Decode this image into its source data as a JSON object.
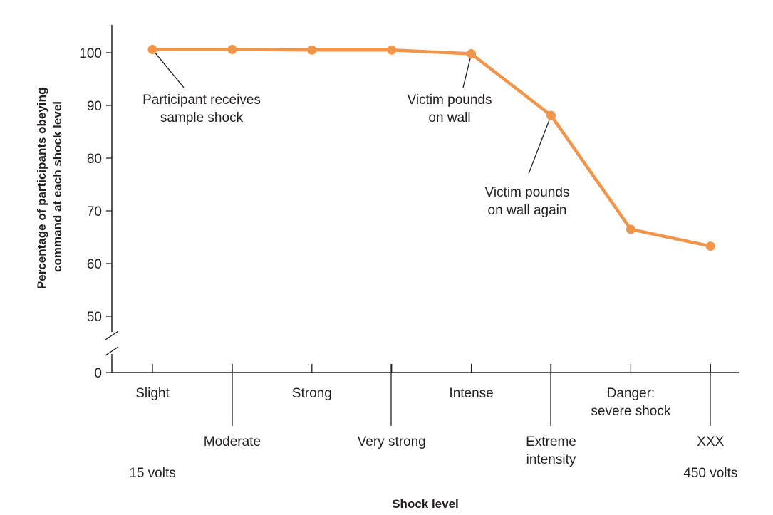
{
  "chart_data": {
    "type": "line",
    "xlabel": "Shock level",
    "ylabel_lines": [
      "Percentage of participants obeying",
      "command at each shock level"
    ],
    "y_ticks": [
      100,
      90,
      80,
      70,
      60,
      50
    ],
    "y_break_label": "0",
    "ylim": [
      50,
      105
    ],
    "axis_break": true,
    "series": [
      {
        "values": [
          100.6,
          100.6,
          100.5,
          100.5,
          99.8,
          88.1,
          66.5,
          63.3
        ]
      }
    ],
    "line_color": "#f0954a",
    "axis_color": "#231f20",
    "category_rows": [
      [
        {
          "lines": [
            "Slight"
          ],
          "slot": 1
        },
        {
          "lines": [
            "Strong"
          ],
          "slot": 3
        },
        {
          "lines": [
            "Intense"
          ],
          "slot": 5
        },
        {
          "lines": [
            "Danger:",
            "severe shock"
          ],
          "slot": 7
        }
      ],
      [
        {
          "lines": [
            "Moderate"
          ],
          "slot": 2
        },
        {
          "lines": [
            "Very strong"
          ],
          "slot": 4
        },
        {
          "lines": [
            "Extreme",
            "intensity"
          ],
          "slot": 6
        },
        {
          "lines": [
            "XXX"
          ],
          "slot": 8
        }
      ]
    ],
    "voltage_labels": [
      {
        "text": "15 volts",
        "slot": 1
      },
      {
        "text": "450 volts",
        "slot": 8
      }
    ],
    "annotations": [
      {
        "lines": [
          "Participant receives",
          "sample shock"
        ],
        "point": 0
      },
      {
        "lines": [
          "Victim pounds",
          "on wall"
        ],
        "point": 4
      },
      {
        "lines": [
          "Victim pounds",
          "on wall again"
        ],
        "point": 5
      }
    ]
  }
}
